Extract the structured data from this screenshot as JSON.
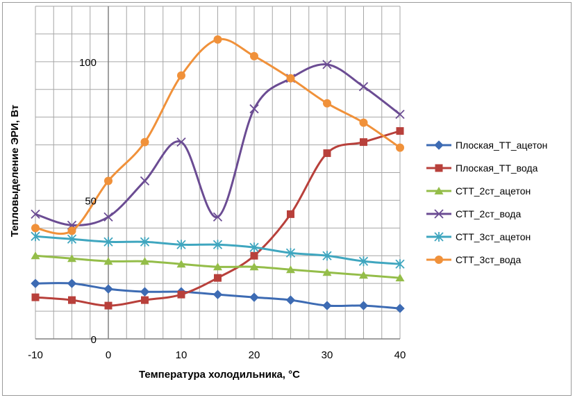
{
  "chart_data": {
    "type": "line",
    "title": "",
    "xlabel": "Температура холодильника, °С",
    "ylabel": "Тепловыделение ЭРИ, Вт",
    "x": [
      -10,
      -5,
      0,
      5,
      10,
      15,
      20,
      25,
      30,
      35,
      40
    ],
    "xlim": [
      -10,
      40
    ],
    "ylim": [
      0,
      120
    ],
    "x_ticks": [
      "-10",
      "0",
      "10",
      "20",
      "30",
      "40"
    ],
    "y_ticks": [
      "0",
      "50",
      "100"
    ],
    "grid": true,
    "legend_position": "right",
    "series": [
      {
        "name": "Плоская_ТТ_ацетон",
        "color": "#3d6bb3",
        "marker": "diamond",
        "values": [
          20,
          20,
          18,
          17,
          17,
          16,
          15,
          14,
          12,
          12,
          11
        ]
      },
      {
        "name": "Плоская_ТТ_вода",
        "color": "#b8403b",
        "marker": "square",
        "values": [
          15,
          14,
          12,
          14,
          16,
          22,
          30,
          45,
          67,
          71,
          75
        ]
      },
      {
        "name": "СТТ_2ст_ацетон",
        "color": "#94bd49",
        "marker": "triangle",
        "values": [
          30,
          29,
          28,
          28,
          27,
          26,
          26,
          25,
          24,
          23,
          22
        ]
      },
      {
        "name": "СТТ_2ст_вода",
        "color": "#6b4c93",
        "marker": "x",
        "values": [
          45,
          41,
          44,
          57,
          71,
          44,
          83,
          94,
          99,
          91,
          81
        ]
      },
      {
        "name": "СТТ_3ст_ацетон",
        "color": "#3fa6bf",
        "marker": "star",
        "values": [
          37,
          36,
          35,
          35,
          34,
          34,
          33,
          31,
          30,
          28,
          27
        ]
      },
      {
        "name": "СТТ_3ст_вода",
        "color": "#f0913a",
        "marker": "circle",
        "values": [
          40,
          39,
          57,
          71,
          95,
          108,
          102,
          94,
          85,
          78,
          69
        ]
      }
    ]
  }
}
